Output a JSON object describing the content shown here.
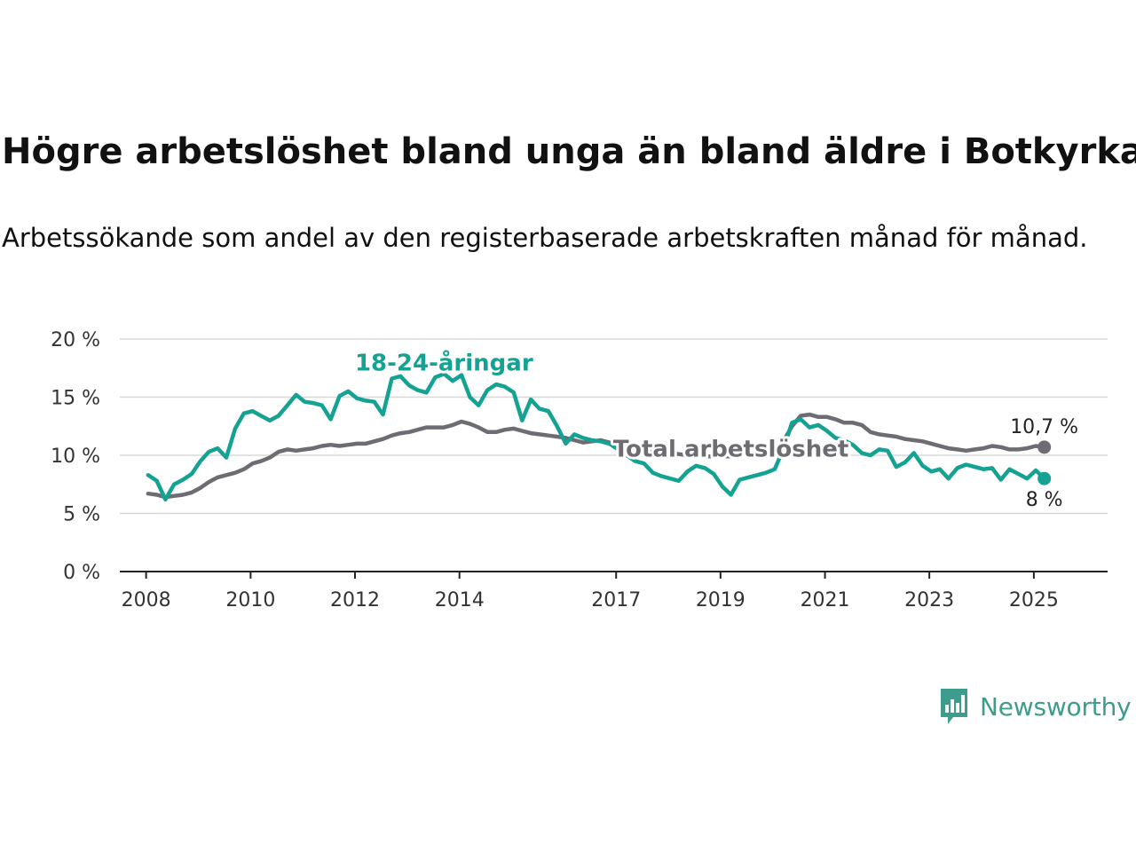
{
  "title": "Högre arbetslöshet bland unga än bland äldre i Botkyrka",
  "subtitle": "Arbetssökande som andel av den registerbaserade arbetskraften månad för månad.",
  "brand": {
    "name": "Newsworthy",
    "icon": "newsworthy-chart-icon",
    "color": "#3d9c8c"
  },
  "chart_data": {
    "type": "line",
    "ylim": [
      0,
      20
    ],
    "xlim": [
      "2007-07-01",
      "2026-06-01"
    ],
    "y_ticks": [
      {
        "value": 0,
        "label": "0 %"
      },
      {
        "value": 5,
        "label": "5 %"
      },
      {
        "value": 10,
        "label": "10 %"
      },
      {
        "value": 15,
        "label": "15 %"
      },
      {
        "value": 20,
        "label": "20 %"
      }
    ],
    "x_ticks": [
      {
        "date": "2008-01-01",
        "label": "2008"
      },
      {
        "date": "2010-01-01",
        "label": "2010"
      },
      {
        "date": "2012-01-01",
        "label": "2012"
      },
      {
        "date": "2014-01-01",
        "label": "2014"
      },
      {
        "date": "2017-01-01",
        "label": "2017"
      },
      {
        "date": "2019-01-01",
        "label": "2019"
      },
      {
        "date": "2021-01-01",
        "label": "2021"
      },
      {
        "date": "2023-01-01",
        "label": "2023"
      },
      {
        "date": "2025-01-01",
        "label": "2025"
      }
    ],
    "grid": true,
    "series": [
      {
        "name": "Total arbetslöshet",
        "color": "#6e6c72",
        "end_label": "10,7 %",
        "points": [
          [
            "2008-01",
            6.7
          ],
          [
            "2008-03",
            6.6
          ],
          [
            "2008-05",
            6.4
          ],
          [
            "2008-07",
            6.5
          ],
          [
            "2008-09",
            6.6
          ],
          [
            "2008-11",
            6.8
          ],
          [
            "2009-01",
            7.2
          ],
          [
            "2009-03",
            7.7
          ],
          [
            "2009-05",
            8.1
          ],
          [
            "2009-07",
            8.3
          ],
          [
            "2009-09",
            8.5
          ],
          [
            "2009-11",
            8.8
          ],
          [
            "2010-01",
            9.3
          ],
          [
            "2010-03",
            9.5
          ],
          [
            "2010-05",
            9.8
          ],
          [
            "2010-07",
            10.3
          ],
          [
            "2010-09",
            10.5
          ],
          [
            "2010-11",
            10.4
          ],
          [
            "2011-01",
            10.5
          ],
          [
            "2011-03",
            10.6
          ],
          [
            "2011-05",
            10.8
          ],
          [
            "2011-07",
            10.9
          ],
          [
            "2011-09",
            10.8
          ],
          [
            "2011-11",
            10.9
          ],
          [
            "2012-01",
            11.0
          ],
          [
            "2012-03",
            11.0
          ],
          [
            "2012-05",
            11.2
          ],
          [
            "2012-07",
            11.4
          ],
          [
            "2012-09",
            11.7
          ],
          [
            "2012-11",
            11.9
          ],
          [
            "2013-01",
            12.0
          ],
          [
            "2013-03",
            12.2
          ],
          [
            "2013-05",
            12.4
          ],
          [
            "2013-07",
            12.4
          ],
          [
            "2013-09",
            12.4
          ],
          [
            "2013-11",
            12.6
          ],
          [
            "2014-01",
            12.9
          ],
          [
            "2014-03",
            12.7
          ],
          [
            "2014-05",
            12.4
          ],
          [
            "2014-07",
            12.0
          ],
          [
            "2014-09",
            12.0
          ],
          [
            "2014-11",
            12.2
          ],
          [
            "2015-01",
            12.3
          ],
          [
            "2015-03",
            12.1
          ],
          [
            "2015-05",
            11.9
          ],
          [
            "2015-07",
            11.8
          ],
          [
            "2015-09",
            11.7
          ],
          [
            "2015-11",
            11.6
          ],
          [
            "2016-01",
            11.5
          ],
          [
            "2016-03",
            11.3
          ],
          [
            "2016-05",
            11.1
          ],
          [
            "2016-07",
            11.2
          ],
          [
            "2016-09",
            11.3
          ],
          [
            "2016-11",
            11.1
          ],
          [
            "2017-01",
            11.0
          ],
          [
            "2017-03",
            10.8
          ],
          [
            "2017-05",
            10.5
          ],
          [
            "2017-07",
            10.4
          ],
          [
            "2017-09",
            10.4
          ],
          [
            "2017-11",
            10.3
          ],
          [
            "2018-01",
            10.2
          ],
          [
            "2018-03",
            10.1
          ],
          [
            "2018-05",
            10.0
          ],
          [
            "2018-07",
            10.0
          ],
          [
            "2018-09",
            9.9
          ],
          [
            "2018-11",
            9.9
          ],
          [
            "2019-01",
            9.9
          ],
          [
            "2019-03",
            9.9
          ],
          [
            "2019-05",
            10.0
          ],
          [
            "2019-07",
            10.1
          ],
          [
            "2019-09",
            10.2
          ],
          [
            "2019-11",
            10.3
          ],
          [
            "2020-01",
            10.5
          ],
          [
            "2020-03",
            11.2
          ],
          [
            "2020-05",
            12.5
          ],
          [
            "2020-07",
            13.4
          ],
          [
            "2020-09",
            13.5
          ],
          [
            "2020-11",
            13.3
          ],
          [
            "2021-01",
            13.3
          ],
          [
            "2021-03",
            13.1
          ],
          [
            "2021-05",
            12.8
          ],
          [
            "2021-07",
            12.8
          ],
          [
            "2021-09",
            12.6
          ],
          [
            "2021-11",
            12.0
          ],
          [
            "2022-01",
            11.8
          ],
          [
            "2022-03",
            11.7
          ],
          [
            "2022-05",
            11.6
          ],
          [
            "2022-07",
            11.4
          ],
          [
            "2022-09",
            11.3
          ],
          [
            "2022-11",
            11.2
          ],
          [
            "2023-01",
            11.0
          ],
          [
            "2023-03",
            10.8
          ],
          [
            "2023-05",
            10.6
          ],
          [
            "2023-07",
            10.5
          ],
          [
            "2023-09",
            10.4
          ],
          [
            "2023-11",
            10.5
          ],
          [
            "2024-01",
            10.6
          ],
          [
            "2024-03",
            10.8
          ],
          [
            "2024-05",
            10.7
          ],
          [
            "2024-07",
            10.5
          ],
          [
            "2024-09",
            10.5
          ],
          [
            "2024-11",
            10.6
          ],
          [
            "2025-01",
            10.8
          ],
          [
            "2025-03",
            10.7
          ]
        ]
      },
      {
        "name": "18-24-åringar",
        "color": "#14a293",
        "end_label": "8 %",
        "points": [
          [
            "2008-01",
            8.3
          ],
          [
            "2008-03",
            7.8
          ],
          [
            "2008-05",
            6.2
          ],
          [
            "2008-07",
            7.5
          ],
          [
            "2008-09",
            7.9
          ],
          [
            "2008-11",
            8.4
          ],
          [
            "2009-01",
            9.5
          ],
          [
            "2009-03",
            10.3
          ],
          [
            "2009-05",
            10.6
          ],
          [
            "2009-07",
            9.8
          ],
          [
            "2009-09",
            12.3
          ],
          [
            "2009-11",
            13.6
          ],
          [
            "2010-01",
            13.8
          ],
          [
            "2010-03",
            13.4
          ],
          [
            "2010-05",
            13.0
          ],
          [
            "2010-07",
            13.4
          ],
          [
            "2010-09",
            14.3
          ],
          [
            "2010-11",
            15.2
          ],
          [
            "2011-01",
            14.6
          ],
          [
            "2011-03",
            14.5
          ],
          [
            "2011-05",
            14.3
          ],
          [
            "2011-07",
            13.1
          ],
          [
            "2011-09",
            15.1
          ],
          [
            "2011-11",
            15.5
          ],
          [
            "2012-01",
            14.9
          ],
          [
            "2012-03",
            14.7
          ],
          [
            "2012-05",
            14.6
          ],
          [
            "2012-07",
            13.5
          ],
          [
            "2012-09",
            16.6
          ],
          [
            "2012-11",
            16.8
          ],
          [
            "2013-01",
            16.0
          ],
          [
            "2013-03",
            15.6
          ],
          [
            "2013-05",
            15.4
          ],
          [
            "2013-07",
            16.7
          ],
          [
            "2013-09",
            17.0
          ],
          [
            "2013-11",
            16.4
          ],
          [
            "2014-01",
            16.9
          ],
          [
            "2014-03",
            15.0
          ],
          [
            "2014-05",
            14.3
          ],
          [
            "2014-07",
            15.6
          ],
          [
            "2014-09",
            16.1
          ],
          [
            "2014-11",
            15.9
          ],
          [
            "2015-01",
            15.4
          ],
          [
            "2015-03",
            13.0
          ],
          [
            "2015-05",
            14.8
          ],
          [
            "2015-07",
            14.0
          ],
          [
            "2015-09",
            13.8
          ],
          [
            "2015-11",
            12.5
          ],
          [
            "2016-01",
            11.0
          ],
          [
            "2016-03",
            11.8
          ],
          [
            "2016-05",
            11.5
          ],
          [
            "2016-07",
            11.3
          ],
          [
            "2016-09",
            11.2
          ],
          [
            "2016-11",
            11.0
          ],
          [
            "2017-01",
            10.5
          ],
          [
            "2017-03",
            10.0
          ],
          [
            "2017-05",
            9.5
          ],
          [
            "2017-07",
            9.3
          ],
          [
            "2017-09",
            8.5
          ],
          [
            "2017-11",
            8.2
          ],
          [
            "2018-01",
            8.0
          ],
          [
            "2018-03",
            7.8
          ],
          [
            "2018-05",
            8.6
          ],
          [
            "2018-07",
            9.1
          ],
          [
            "2018-09",
            8.9
          ],
          [
            "2018-11",
            8.4
          ],
          [
            "2019-01",
            7.3
          ],
          [
            "2019-03",
            6.6
          ],
          [
            "2019-05",
            7.9
          ],
          [
            "2019-07",
            8.1
          ],
          [
            "2019-09",
            8.3
          ],
          [
            "2019-11",
            8.5
          ],
          [
            "2020-01",
            8.8
          ],
          [
            "2020-03",
            10.5
          ],
          [
            "2020-05",
            12.8
          ],
          [
            "2020-07",
            13.1
          ],
          [
            "2020-09",
            12.4
          ],
          [
            "2020-11",
            12.6
          ],
          [
            "2021-01",
            12.1
          ],
          [
            "2021-03",
            11.5
          ],
          [
            "2021-05",
            11.3
          ],
          [
            "2021-07",
            10.9
          ],
          [
            "2021-09",
            10.2
          ],
          [
            "2021-11",
            10.0
          ],
          [
            "2022-01",
            10.5
          ],
          [
            "2022-03",
            10.4
          ],
          [
            "2022-05",
            9.0
          ],
          [
            "2022-07",
            9.4
          ],
          [
            "2022-09",
            10.2
          ],
          [
            "2022-11",
            9.1
          ],
          [
            "2023-01",
            8.6
          ],
          [
            "2023-03",
            8.8
          ],
          [
            "2023-05",
            8.0
          ],
          [
            "2023-07",
            8.9
          ],
          [
            "2023-09",
            9.2
          ],
          [
            "2023-11",
            9.0
          ],
          [
            "2024-01",
            8.8
          ],
          [
            "2024-03",
            8.9
          ],
          [
            "2024-05",
            7.9
          ],
          [
            "2024-07",
            8.8
          ],
          [
            "2024-09",
            8.4
          ],
          [
            "2024-11",
            8.0
          ],
          [
            "2025-01",
            8.7
          ],
          [
            "2025-03",
            8.0
          ]
        ]
      }
    ],
    "annotations": [
      {
        "text": "18-24-åringar",
        "series": "18-24-åringar",
        "at": "2013-09",
        "value": 17.9
      },
      {
        "text": "Total arbetslöshet",
        "series": "Total arbetslöshet",
        "at": "2019-03",
        "value": 10.5
      }
    ]
  }
}
